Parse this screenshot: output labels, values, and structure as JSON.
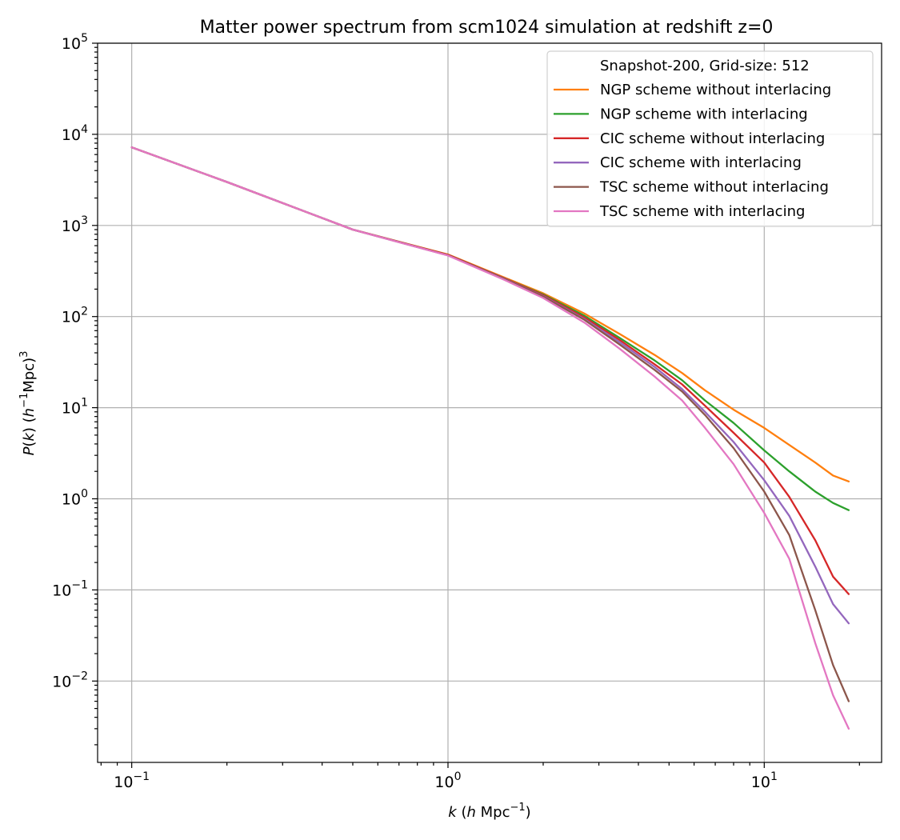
{
  "chart_data": {
    "type": "line",
    "title": "Matter power spectrum from scm1024 simulation at redshift z=0",
    "xlabel": "k  (h Mpc⁻¹)",
    "ylabel": "P(k)  (h⁻¹Mpc)³",
    "xscale": "log",
    "yscale": "log",
    "xlim": [
      0.078,
      23.5
    ],
    "ylim": [
      0.00128,
      100000
    ],
    "grid": true,
    "legend_placement": "top-right",
    "legend_title": "Snapshot-200, Grid-size: 512",
    "x_tick_labels": [
      {
        "value": 0.1,
        "base": "10",
        "exp": "−1"
      },
      {
        "value": 1,
        "base": "10",
        "exp": "0"
      },
      {
        "value": 10,
        "base": "10",
        "exp": "1"
      }
    ],
    "y_tick_labels": [
      {
        "value": 0.01,
        "base": "10",
        "exp": "−2"
      },
      {
        "value": 0.1,
        "base": "10",
        "exp": "−1"
      },
      {
        "value": 1,
        "base": "10",
        "exp": "0"
      },
      {
        "value": 10,
        "base": "10",
        "exp": "1"
      },
      {
        "value": 100,
        "base": "10",
        "exp": "2"
      },
      {
        "value": 1000,
        "base": "10",
        "exp": "3"
      },
      {
        "value": 10000,
        "base": "10",
        "exp": "4"
      },
      {
        "value": 100000,
        "base": "10",
        "exp": "5"
      }
    ],
    "series": [
      {
        "name": "NGP scheme without interlacing",
        "color": "#ff7f0e",
        "x": [
          0.1,
          0.2,
          0.5,
          1.0,
          1.5,
          2.0,
          2.7,
          3.5,
          4.5,
          5.5,
          6.5,
          8.0,
          10.0,
          12.0,
          14.5,
          16.5,
          18.5
        ],
        "y": [
          7200,
          3000,
          900,
          480,
          270,
          180,
          108,
          64,
          38,
          24,
          15.5,
          9.5,
          6.0,
          3.9,
          2.5,
          1.8,
          1.55
        ]
      },
      {
        "name": "NGP scheme with interlacing",
        "color": "#2ca02c",
        "x": [
          0.1,
          0.2,
          0.5,
          1.0,
          1.5,
          2.0,
          2.7,
          3.5,
          4.5,
          5.5,
          6.5,
          8.0,
          10.0,
          12.0,
          14.5,
          16.5,
          18.5
        ],
        "y": [
          7200,
          3000,
          900,
          475,
          265,
          175,
          102,
          58,
          33,
          20,
          12,
          6.8,
          3.4,
          2.0,
          1.2,
          0.9,
          0.75
        ]
      },
      {
        "name": "CIC scheme without interlacing",
        "color": "#d62728",
        "x": [
          0.1,
          0.2,
          0.5,
          1.0,
          1.5,
          2.0,
          2.7,
          3.5,
          4.5,
          5.5,
          6.5,
          8.0,
          10.0,
          12.0,
          14.5,
          16.5,
          18.5
        ],
        "y": [
          7200,
          3000,
          900,
          475,
          265,
          172,
          98,
          55,
          30,
          18,
          10.5,
          5.3,
          2.5,
          1.05,
          0.35,
          0.14,
          0.09
        ]
      },
      {
        "name": "CIC scheme with interlacing",
        "color": "#9467bd",
        "x": [
          0.1,
          0.2,
          0.5,
          1.0,
          1.5,
          2.0,
          2.7,
          3.5,
          4.5,
          5.5,
          6.5,
          8.0,
          10.0,
          12.0,
          14.5,
          16.5,
          18.5
        ],
        "y": [
          7200,
          3000,
          900,
          470,
          262,
          168,
          94,
          52,
          28,
          16,
          9.0,
          4.2,
          1.6,
          0.65,
          0.18,
          0.07,
          0.043
        ]
      },
      {
        "name": "TSC scheme without interlacing",
        "color": "#8c564b",
        "x": [
          0.1,
          0.2,
          0.5,
          1.0,
          1.5,
          2.0,
          2.7,
          3.5,
          4.5,
          5.5,
          6.5,
          8.0,
          10.0,
          12.0,
          14.5,
          16.5,
          18.5
        ],
        "y": [
          7200,
          3000,
          900,
          470,
          260,
          166,
          92,
          49,
          26,
          15,
          8.3,
          3.6,
          1.2,
          0.4,
          0.06,
          0.015,
          0.006
        ]
      },
      {
        "name": "TSC scheme with interlacing",
        "color": "#e377c2",
        "x": [
          0.1,
          0.2,
          0.5,
          1.0,
          1.5,
          2.0,
          2.7,
          3.5,
          4.5,
          5.5,
          6.5,
          8.0,
          10.0,
          12.0,
          14.5,
          16.5,
          18.5
        ],
        "y": [
          7200,
          3000,
          900,
          468,
          255,
          160,
          86,
          44,
          22,
          12,
          6.0,
          2.4,
          0.7,
          0.22,
          0.026,
          0.007,
          0.003
        ]
      }
    ]
  }
}
